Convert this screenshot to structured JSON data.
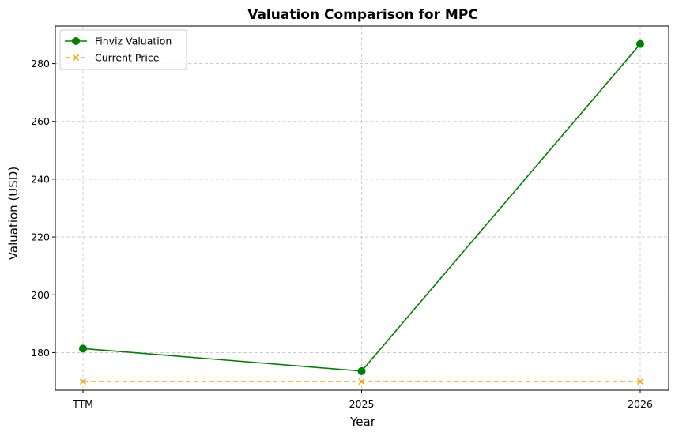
{
  "chart_data": {
    "type": "line",
    "title": "Valuation Comparison for MPC",
    "xlabel": "Year",
    "ylabel": "Valuation (USD)",
    "categories": [
      "TTM",
      "2025",
      "2026"
    ],
    "yticks": [
      180,
      200,
      220,
      240,
      260,
      280
    ],
    "ylim": [
      167,
      293
    ],
    "grid": true,
    "legend_position": "top-left",
    "series": [
      {
        "name": "Finviz Valuation",
        "values": [
          181.4,
          173.6,
          286.8
        ],
        "color": "#008000",
        "line_style": "solid",
        "marker": "circle"
      },
      {
        "name": "Current Price",
        "values": [
          170.0,
          170.0,
          170.0
        ],
        "color": "#FFA500",
        "line_style": "dashed",
        "marker": "x"
      }
    ]
  }
}
